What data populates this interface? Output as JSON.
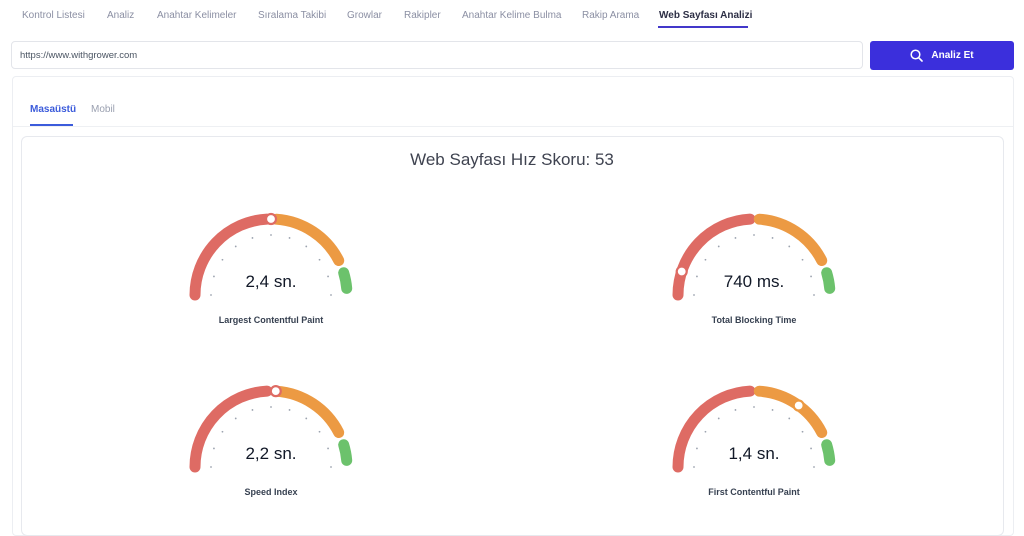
{
  "nav": {
    "items": [
      {
        "label": "Kontrol Listesi"
      },
      {
        "label": "Analiz"
      },
      {
        "label": "Anahtar Kelimeler"
      },
      {
        "label": "Sıralama Takibi"
      },
      {
        "label": "Growlar"
      },
      {
        "label": "Rakipler"
      },
      {
        "label": "Anahtar Kelime Bulma"
      },
      {
        "label": "Rakip Arama"
      },
      {
        "label": "Web Sayfası Analizi"
      }
    ],
    "active": "Web Sayfası Analizi"
  },
  "search": {
    "value": "https://www.withgrower.com",
    "button_label": "Analiz Et",
    "button_icon": "search-icon"
  },
  "tabs": [
    {
      "label": "Masaüstü",
      "active": true
    },
    {
      "label": "Mobil",
      "active": false
    }
  ],
  "speed_score": {
    "title": "Web Sayfası Hız Skoru: 53"
  },
  "gauges": [
    {
      "value": "2,4 sn.",
      "label": "Largest Contentful Paint",
      "needle_level": 0.5
    },
    {
      "value": "740 ms.",
      "label": "Total Blocking Time",
      "needle_level": 0.1
    },
    {
      "value": "2,2 sn.",
      "label": "Speed Index",
      "needle_level": 0.52
    },
    {
      "value": "1,4 sn.",
      "label": "First Contentful Paint",
      "needle_level": 0.7
    }
  ],
  "colors": {
    "primary": "#3b2fdc",
    "tab_active": "#3b5bdb",
    "gauge_red": "#de6b64",
    "gauge_orange": "#ec9a43",
    "gauge_green": "#6cc26c",
    "nav_active_underline": "#4338ca"
  }
}
